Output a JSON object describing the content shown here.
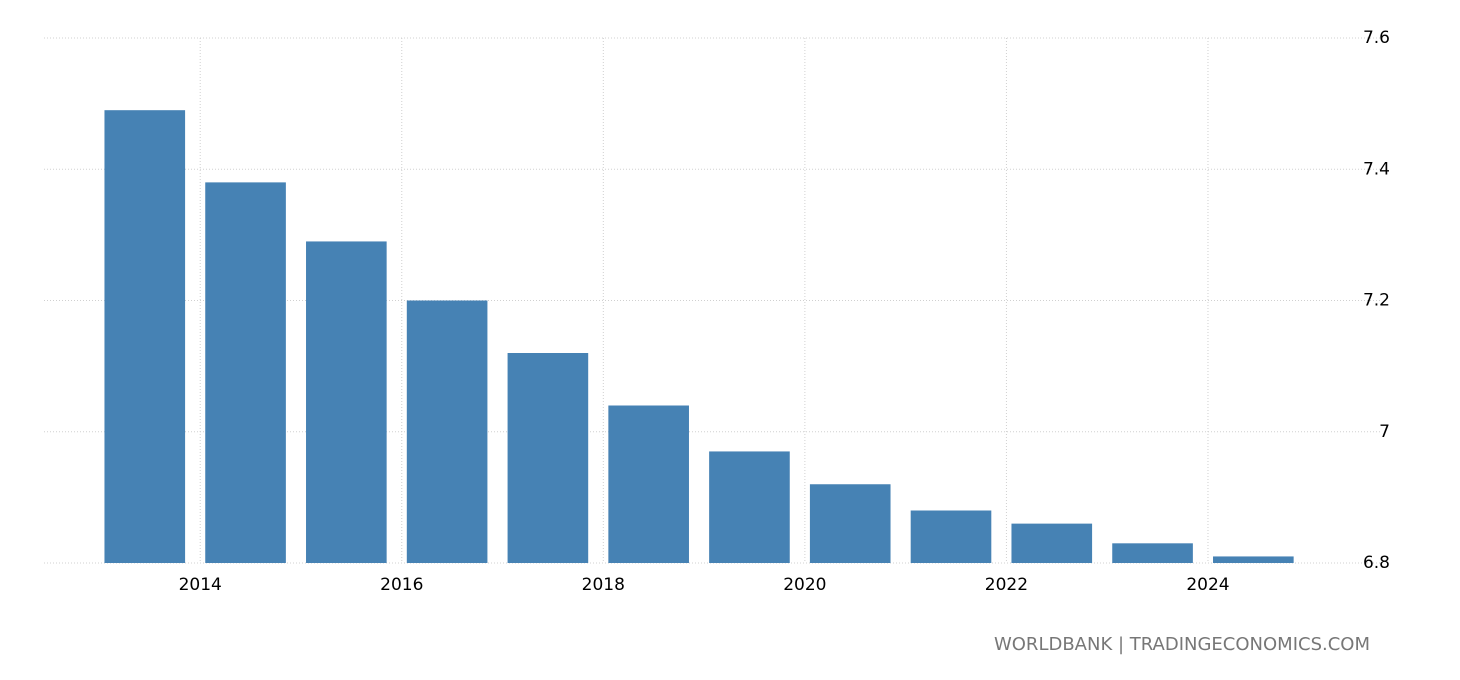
{
  "chart_data": {
    "type": "bar",
    "x": [
      2013,
      2014,
      2015,
      2016,
      2017,
      2018,
      2019,
      2020,
      2021,
      2022,
      2023,
      2024
    ],
    "values": [
      7.49,
      7.38,
      7.29,
      7.2,
      7.12,
      7.04,
      6.97,
      6.92,
      6.88,
      6.86,
      6.83,
      6.81
    ],
    "color": "#4682b4",
    "xlim": [
      2012.45,
      2025.31
    ],
    "xticks": [
      2014,
      2016,
      2018,
      2020,
      2022,
      2024
    ],
    "ylim": [
      6.8,
      7.6
    ],
    "yticks": [
      6.8,
      7,
      7.2,
      7.4,
      7.6
    ],
    "grid": true,
    "source": "WORLDBANK | TRADINGECONOMICS.COM"
  }
}
